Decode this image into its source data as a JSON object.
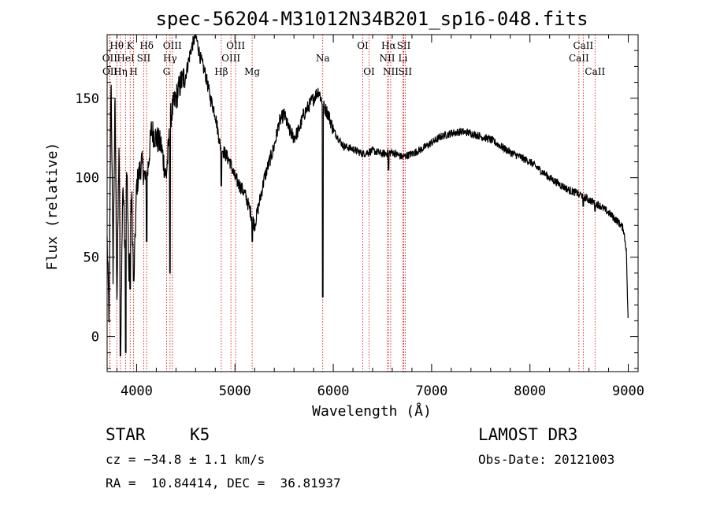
{
  "chart_data": {
    "type": "line",
    "title": "spec-56204-M31012N34B201_sp16-048.fits",
    "xlabel": "Wavelength (Å)",
    "ylabel": "Flux (relative)",
    "xlim": [
      3700,
      9100
    ],
    "ylim": [
      -22,
      190
    ],
    "xticks": [
      4000,
      5000,
      6000,
      7000,
      8000,
      9000
    ],
    "yticks": [
      0,
      50,
      100,
      150
    ],
    "line_color": "#000000",
    "marker_color": "#cc0000",
    "spectrum_anchors": [
      [
        3700,
        60
      ],
      [
        3720,
        10
      ],
      [
        3740,
        170
      ],
      [
        3760,
        40
      ],
      [
        3780,
        150
      ],
      [
        3800,
        20
      ],
      [
        3820,
        120
      ],
      [
        3840,
        5
      ],
      [
        3860,
        100
      ],
      [
        3880,
        60
      ],
      [
        3900,
        110
      ],
      [
        3920,
        40
      ],
      [
        3950,
        90
      ],
      [
        3970,
        30
      ],
      [
        4000,
        95
      ],
      [
        4050,
        110
      ],
      [
        4100,
        95
      ],
      [
        4150,
        130
      ],
      [
        4200,
        125
      ],
      [
        4250,
        120
      ],
      [
        4300,
        100
      ],
      [
        4350,
        140
      ],
      [
        4400,
        150
      ],
      [
        4450,
        160
      ],
      [
        4500,
        165
      ],
      [
        4550,
        180
      ],
      [
        4600,
        190
      ],
      [
        4650,
        175
      ],
      [
        4700,
        165
      ],
      [
        4750,
        150
      ],
      [
        4800,
        140
      ],
      [
        4850,
        120
      ],
      [
        4900,
        115
      ],
      [
        4950,
        110
      ],
      [
        5000,
        100
      ],
      [
        5050,
        95
      ],
      [
        5100,
        90
      ],
      [
        5150,
        80
      ],
      [
        5200,
        70
      ],
      [
        5250,
        85
      ],
      [
        5300,
        100
      ],
      [
        5350,
        110
      ],
      [
        5400,
        120
      ],
      [
        5450,
        135
      ],
      [
        5500,
        140
      ],
      [
        5550,
        130
      ],
      [
        5600,
        125
      ],
      [
        5650,
        130
      ],
      [
        5700,
        140
      ],
      [
        5750,
        145
      ],
      [
        5800,
        150
      ],
      [
        5850,
        155
      ],
      [
        5900,
        145
      ],
      [
        5950,
        140
      ],
      [
        6000,
        130
      ],
      [
        6050,
        125
      ],
      [
        6100,
        120
      ],
      [
        6200,
        118
      ],
      [
        6300,
        115
      ],
      [
        6400,
        117
      ],
      [
        6500,
        115
      ],
      [
        6600,
        116
      ],
      [
        6700,
        113
      ],
      [
        6800,
        115
      ],
      [
        6900,
        118
      ],
      [
        7000,
        122
      ],
      [
        7100,
        126
      ],
      [
        7200,
        128
      ],
      [
        7300,
        129
      ],
      [
        7400,
        128
      ],
      [
        7500,
        126
      ],
      [
        7600,
        124
      ],
      [
        7700,
        120
      ],
      [
        7800,
        116
      ],
      [
        7900,
        113
      ],
      [
        8000,
        110
      ],
      [
        8100,
        105
      ],
      [
        8200,
        100
      ],
      [
        8300,
        96
      ],
      [
        8400,
        92
      ],
      [
        8500,
        90
      ],
      [
        8600,
        86
      ],
      [
        8700,
        83
      ],
      [
        8800,
        78
      ],
      [
        8900,
        72
      ],
      [
        8950,
        68
      ],
      [
        8980,
        55
      ],
      [
        9000,
        5
      ]
    ],
    "absorption_features": [
      [
        3835,
        -12
      ],
      [
        3890,
        -10
      ],
      [
        3934,
        30
      ],
      [
        3969,
        35
      ],
      [
        4101,
        60
      ],
      [
        4340,
        40
      ],
      [
        4861,
        95
      ],
      [
        5175,
        60
      ],
      [
        5893,
        25
      ],
      [
        6563,
        105
      ],
      [
        8498,
        88
      ],
      [
        8542,
        82
      ],
      [
        8662,
        79
      ]
    ],
    "line_markers": [
      {
        "label": "Hθ",
        "x": 3798,
        "row": 1
      },
      {
        "label": "OII",
        "x": 3727,
        "row": 2
      },
      {
        "label": "OII",
        "x": 3729,
        "row": 3
      },
      {
        "label": "Hη",
        "x": 3835,
        "row": 3
      },
      {
        "label": "K",
        "x": 3934,
        "row": 1
      },
      {
        "label": "HeI",
        "x": 3889,
        "row": 2
      },
      {
        "label": "H",
        "x": 3969,
        "row": 3
      },
      {
        "label": "Hδ",
        "x": 4102,
        "row": 1
      },
      {
        "label": "SII",
        "x": 4072,
        "row": 2
      },
      {
        "label": "OIII",
        "x": 4363,
        "row": 1
      },
      {
        "label": "Hγ",
        "x": 4340,
        "row": 2
      },
      {
        "label": "G",
        "x": 4304,
        "row": 3
      },
      {
        "label": "Hβ",
        "x": 4861,
        "row": 3
      },
      {
        "label": "OIII",
        "x": 5007,
        "row": 1
      },
      {
        "label": "OIII",
        "x": 4959,
        "row": 2
      },
      {
        "label": "Mg",
        "x": 5175,
        "row": 3
      },
      {
        "label": "Na",
        "x": 5893,
        "row": 2
      },
      {
        "label": "OI",
        "x": 6300,
        "row": 1
      },
      {
        "label": "OI",
        "x": 6364,
        "row": 3
      },
      {
        "label": "Hα",
        "x": 6563,
        "row": 1
      },
      {
        "label": "NII",
        "x": 6548,
        "row": 2
      },
      {
        "label": "NII",
        "x": 6584,
        "row": 3
      },
      {
        "label": "SII",
        "x": 6717,
        "row": 1
      },
      {
        "label": "Li",
        "x": 6708,
        "row": 2
      },
      {
        "label": "SII",
        "x": 6731,
        "row": 3
      },
      {
        "label": "CaII",
        "x": 8542,
        "row": 1
      },
      {
        "label": "CaII",
        "x": 8498,
        "row": 2
      },
      {
        "label": "CaII",
        "x": 8662,
        "row": 3
      }
    ]
  },
  "info": {
    "class": "STAR",
    "subclass": "K5",
    "redshift": "cz = −34.8 ± 1.1 km/s",
    "coords": "RA =  10.84414, DEC =  36.81937",
    "survey": "LAMOST DR3",
    "obs_date": "Obs-Date: 20121003"
  }
}
